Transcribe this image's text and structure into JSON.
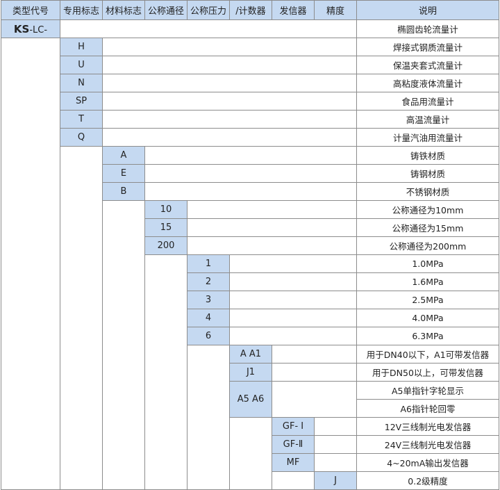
{
  "headers": [
    "类型代号",
    "专用标志",
    "材料标志",
    "公称通径",
    "公称压力",
    "/计数器",
    "发信器",
    "精度",
    "说明"
  ],
  "type_code": {
    "bold": "KS",
    "rest": "-LC-",
    "desc": "椭圆齿轮流量计"
  },
  "special": [
    {
      "code": "H",
      "desc": "焊接式钢质流量计"
    },
    {
      "code": "U",
      "desc": "保温夹套式流量计"
    },
    {
      "code": "N",
      "desc": "高粘度液体流量计"
    },
    {
      "code": "SP",
      "desc": "食品用流量计"
    },
    {
      "code": "T",
      "desc": "高温流量计"
    },
    {
      "code": "Q",
      "desc": "计量汽油用流量计"
    }
  ],
  "material": [
    {
      "code": "A",
      "desc": "铸铁材质"
    },
    {
      "code": "E",
      "desc": "铸钢材质"
    },
    {
      "code": "B",
      "desc": "不锈钢材质"
    }
  ],
  "diameter": [
    {
      "code": "10",
      "desc": "公称通径为10mm"
    },
    {
      "code": "15",
      "desc": "公称通径为15mm"
    },
    {
      "code": "200",
      "desc": "公称通径为200mm"
    }
  ],
  "pressure": [
    {
      "code": "1",
      "desc": "1.0MPa"
    },
    {
      "code": "2",
      "desc": "1.6MPa"
    },
    {
      "code": "3",
      "desc": "2.5MPa"
    },
    {
      "code": "4",
      "desc": "4.0MPa"
    },
    {
      "code": "6",
      "desc": "6.3MPa"
    }
  ],
  "counter": [
    {
      "code": "A A1",
      "desc": "用于DN40以下，A1可带发信器"
    },
    {
      "code": "J1",
      "desc": "用于DN50以上，可带发信器"
    },
    {
      "code": "A5 A6",
      "desc": "A5单指针字轮显示",
      "desc2": "A6指针轮回零"
    }
  ],
  "transmitter": [
    {
      "code": "GF- Ⅰ",
      "desc": "12V三线制光电发信器"
    },
    {
      "code": "GF-Ⅱ",
      "desc": "24V三线制光电发信器"
    },
    {
      "code": "MF",
      "desc": "4~20mA输出发信器"
    }
  ],
  "accuracy": [
    {
      "code": "J",
      "desc": "0.2级精度"
    }
  ],
  "colors": {
    "header_bg": "#c5d9f1",
    "code_bg": "#c5d9f1",
    "border": "#8c8c8c"
  }
}
